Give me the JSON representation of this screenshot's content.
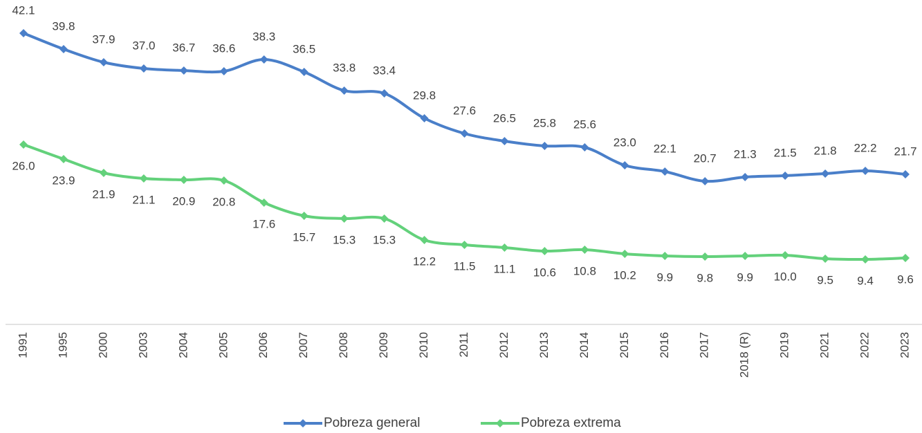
{
  "chart_data": {
    "type": "line",
    "categories": [
      "1991",
      "1995",
      "2000",
      "2003",
      "2004",
      "2005",
      "2006",
      "2007",
      "2008",
      "2009",
      "2010",
      "2011",
      "2012",
      "2013",
      "2014",
      "2015",
      "2016",
      "2017",
      "2018 (R)",
      "2019",
      "2021",
      "2022",
      "2023"
    ],
    "series": [
      {
        "name": "Pobreza general",
        "color": "#4a7fc9",
        "values": [
          42.1,
          39.8,
          37.9,
          37.0,
          36.7,
          36.6,
          38.3,
          36.5,
          33.8,
          33.4,
          29.8,
          27.6,
          26.5,
          25.8,
          25.6,
          23.0,
          22.1,
          20.7,
          21.3,
          21.5,
          21.8,
          22.2,
          21.7
        ],
        "value_labels": [
          "42.1",
          "39.8",
          "37.9",
          "37.0",
          "36.7",
          "36.6",
          "38.3",
          "36.5",
          "33.8",
          "33.4",
          "29.8",
          "27.6",
          "26.5",
          "25.8",
          "25.6",
          "23.0",
          "22.1",
          "20.7",
          "21.3",
          "21.5",
          "21.8",
          "22.2",
          "21.7"
        ]
      },
      {
        "name": "Pobreza extrema",
        "color": "#63d17b",
        "values": [
          26.0,
          23.9,
          21.9,
          21.1,
          20.9,
          20.8,
          17.6,
          15.7,
          15.3,
          15.3,
          12.2,
          11.5,
          11.1,
          10.6,
          10.8,
          10.2,
          9.9,
          9.8,
          9.9,
          10.0,
          9.5,
          9.4,
          9.6
        ],
        "value_labels": [
          "26.0",
          "23.9",
          "21.9",
          "21.1",
          "20.9",
          "20.8",
          "17.6",
          "15.7",
          "15.3",
          "15.3",
          "12.2",
          "11.5",
          "11.1",
          "10.6",
          "10.8",
          "10.2",
          "9.9",
          "9.8",
          "9.9",
          "10.0",
          "9.5",
          "9.4",
          "9.6"
        ]
      }
    ],
    "legend": "bottom"
  }
}
